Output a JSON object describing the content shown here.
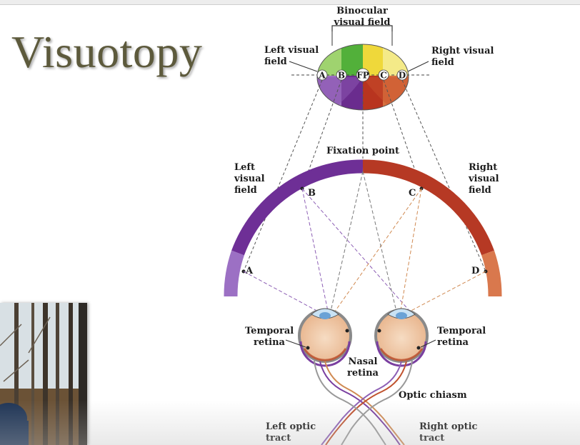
{
  "title": "Visuotopy",
  "labels": {
    "binocular": [
      "Binocular",
      "visual field"
    ],
    "left_visual_field_top": [
      "Left visual",
      "field"
    ],
    "right_visual_field_top": [
      "Right visual",
      "field"
    ],
    "field_points": {
      "a": "A",
      "b": "B",
      "fp": "FP",
      "c": "C",
      "d": "D"
    },
    "fixation_point": "Fixation point",
    "left_visual_field": [
      "Left",
      "visual",
      "field"
    ],
    "right_visual_field": [
      "Right",
      "visual",
      "field"
    ],
    "arc_points": {
      "a": "A",
      "b": "B",
      "c": "C",
      "d": "D"
    },
    "temporal_retina_left": [
      "Temporal",
      "retina"
    ],
    "temporal_retina_right": [
      "Temporal",
      "retina"
    ],
    "nasal_retina": [
      "Nasal",
      "retina"
    ],
    "optic_chiasm": "Optic chiasm",
    "left_optic_tract": [
      "Left optic",
      "tract"
    ],
    "right_optic_tract": [
      "Right optic",
      "tract"
    ]
  },
  "colors": {
    "left_purple": "#7b3fa0",
    "right_red": "#b83a26",
    "left_green": "#7cc04a",
    "right_yellow": "#f0d93a",
    "title": "#5d5a3c"
  },
  "webcam": {
    "icon": "presenter-video-thumbnail"
  }
}
